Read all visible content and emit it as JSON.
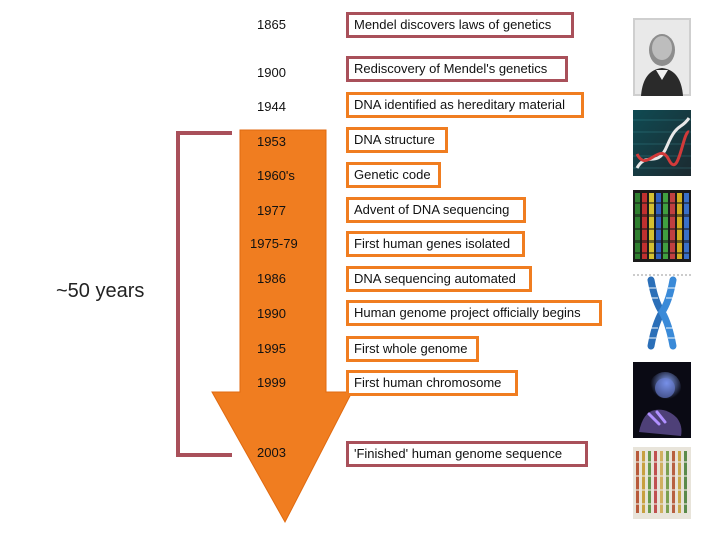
{
  "span_label": "~50 years",
  "milestones": [
    {
      "year": "1865",
      "event": "Mendel discovers laws of genetics"
    },
    {
      "year": "1900",
      "event": "Rediscovery of Mendel's genetics"
    },
    {
      "year": "1944",
      "event": "DNA identified as hereditary material"
    },
    {
      "year": "1953",
      "event": "DNA structure"
    },
    {
      "year": "1960's",
      "event": "Genetic code"
    },
    {
      "year": "1977",
      "event": "Advent of DNA sequencing"
    },
    {
      "year": "1975-79",
      "event": "First human genes isolated"
    },
    {
      "year": "1986",
      "event": "DNA sequencing automated"
    },
    {
      "year": "1990",
      "event": "Human genome project officially begins"
    },
    {
      "year": "1995",
      "event": "First whole genome"
    },
    {
      "year": "1999",
      "event": "First human chromosome"
    },
    {
      "year": "2003",
      "event": "'Finished' human genome sequence"
    }
  ],
  "colors": {
    "arrow": "#f07d20",
    "bracket": "#a9505a",
    "accent": "#f07d20"
  },
  "images": [
    "mendel-portrait",
    "dna-double-helix",
    "dna-sequencing-gel",
    "chromosome",
    "cell-in-hand",
    "genome-sequence-printout"
  ]
}
